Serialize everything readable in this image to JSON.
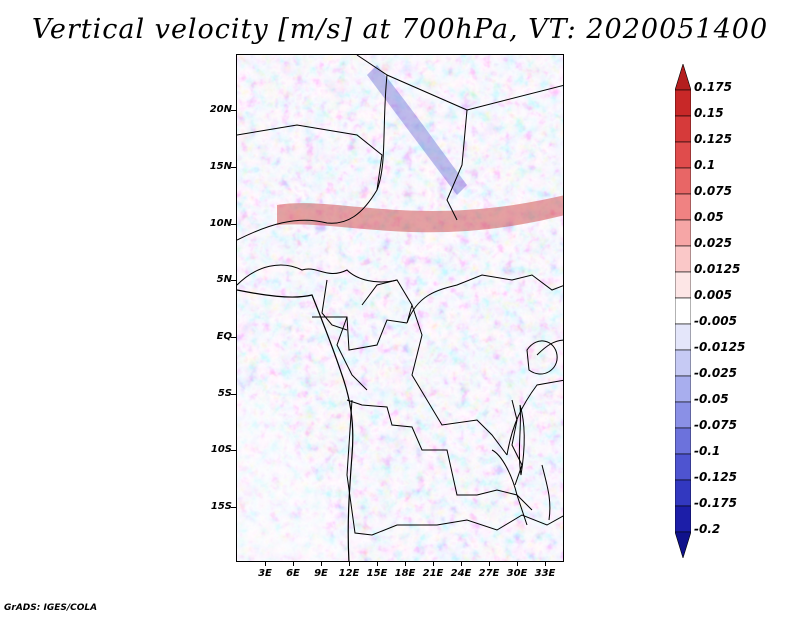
{
  "title": "Vertical velocity [m/s] at 700hPa, VT: 2020051400",
  "credit": "GrADS: IGES/COLA",
  "y_axis_labels": [
    "20N",
    "15N",
    "10N",
    "5N",
    "EQ",
    "5S",
    "10S",
    "15S"
  ],
  "x_axis_labels": [
    "3E",
    "6E",
    "9E",
    "12E",
    "15E",
    "18E",
    "21E",
    "24E",
    "27E",
    "30E",
    "33E"
  ],
  "colorbar": {
    "labels": [
      "0.175",
      "0.15",
      "0.125",
      "0.1",
      "0.075",
      "0.05",
      "0.025",
      "0.0125",
      "0.005",
      "-0.005",
      "-0.0125",
      "-0.025",
      "-0.05",
      "-0.075",
      "-0.1",
      "-0.125",
      "-0.175",
      "-0.2"
    ],
    "colors": [
      "#b41e1e",
      "#c82828",
      "#d63a3a",
      "#e04c4c",
      "#e86666",
      "#f08282",
      "#f6a6a6",
      "#fac8c8",
      "#fde6e6",
      "#ffffff",
      "#e4e6fa",
      "#c6caf4",
      "#a8aeee",
      "#8a90e6",
      "#6c72dc",
      "#4e54d0",
      "#3238c0",
      "#1c1ea8",
      "#10128c"
    ]
  },
  "colors": {
    "positive": "#d23c3c",
    "negative": "#3c3cd2",
    "neutral": "#ffffff"
  }
}
